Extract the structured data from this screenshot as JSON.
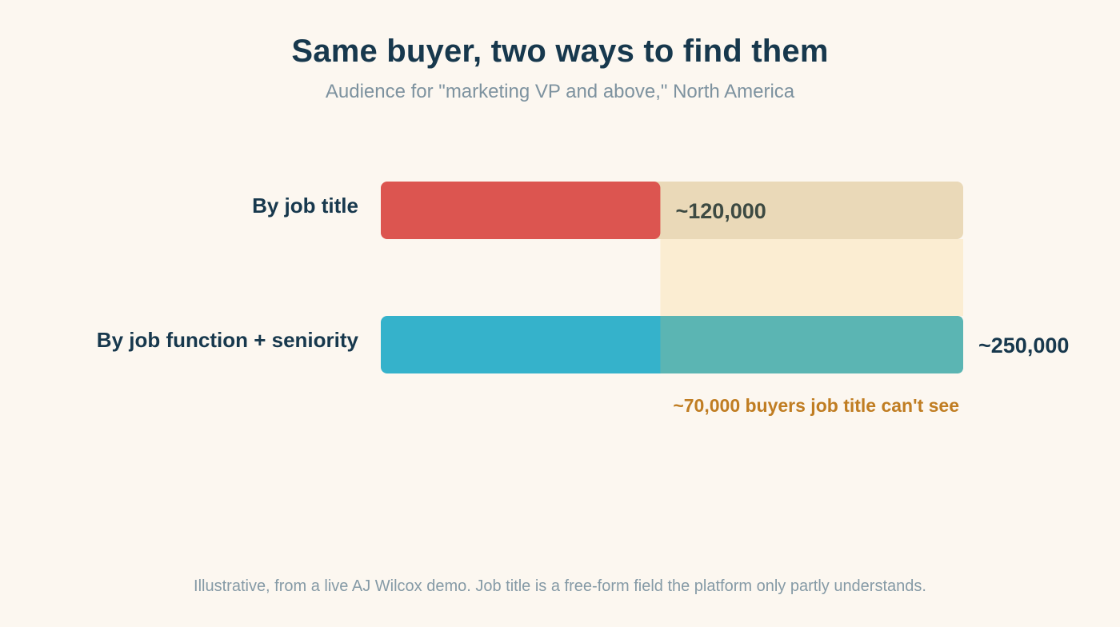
{
  "chart_data": {
    "type": "bar",
    "orientation": "horizontal",
    "title": "Same buyer, two ways to find them",
    "subtitle": "Audience for \"marketing VP and above,\" North America",
    "categories": [
      "By job title",
      "By job function + seniority"
    ],
    "values": [
      120000,
      250000
    ],
    "value_labels": [
      "~120,000",
      "~250,000"
    ],
    "hidden_segment": {
      "value": 70000,
      "label": "~70,000 buyers job title can't see"
    },
    "xlim": [
      0,
      250000
    ],
    "grid": false,
    "legend": "none",
    "footnote": "Illustrative, from a live AJ Wilcox demo. Job title is a free-form field the platform only partly understands."
  },
  "colors": {
    "background": "#fcf7f0",
    "title_bar": "#dc5550",
    "function_bar": "#35b2cb",
    "overlap": "#5bb5b3",
    "title_track": "#ead9b8",
    "gap_band": "#fbedd2",
    "text_dark": "#17384d",
    "text_muted": "#7d929f",
    "gap_text": "#c07d22"
  }
}
